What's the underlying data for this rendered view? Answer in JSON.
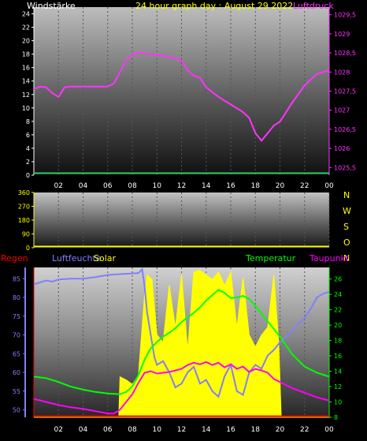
{
  "colors": {
    "background": "#000000",
    "axis_left": "#ffffff",
    "pressure": "#ff33ff",
    "wind": "#33cc66",
    "title": "#ffff00",
    "direction": "#ffff00",
    "rain": "#ff0000",
    "humidity": "#8080ff",
    "solar": "#ffff00",
    "temperature": "#00ff00",
    "dewpoint": "#ff00ff",
    "grid_dash": "#555555"
  },
  "header": {
    "left_label": "Windstärke",
    "title": "24 hour graph day : August 29 2022",
    "right_label": "Luftdruck"
  },
  "direction_letters": [
    "N",
    "W",
    "S",
    "O",
    "N"
  ],
  "legend": {
    "rain": "Regen",
    "humidity": "Luftfeuchte",
    "solar": "Solar",
    "temperature": "Temperatur",
    "dewpoint": "Taupunkt"
  },
  "chart_data": [
    {
      "type": "line",
      "title": "24 hour graph day : August 29 2022",
      "x_ticks": [
        "02",
        "04",
        "06",
        "08",
        "10",
        "12",
        "14",
        "16",
        "18",
        "20",
        "22",
        "00"
      ],
      "xlim": [
        0,
        24
      ],
      "left_axis": {
        "label": "Windstärke",
        "ticks": [
          "0",
          "2",
          "4",
          "6",
          "8",
          "10",
          "12",
          "14",
          "16",
          "18",
          "20",
          "22",
          "24"
        ],
        "ylim": [
          0,
          25
        ]
      },
      "right_axis": {
        "label": "Luftdruck",
        "ticks": [
          "1025,5",
          "1026",
          "1026,5",
          "1027",
          "1027,5",
          "1028",
          "1028,5",
          "1029",
          "1029,5"
        ],
        "ylim": [
          1025.3,
          1029.7
        ]
      },
      "series": [
        {
          "name": "Luftdruck",
          "axis": "right",
          "x": [
            0,
            0.5,
            1,
            1.5,
            2,
            2.5,
            3,
            4,
            5,
            6,
            6.5,
            7,
            7.5,
            8,
            8.5,
            9,
            10,
            11,
            12,
            12.5,
            13,
            13.5,
            14,
            15,
            16,
            17,
            17.5,
            18,
            18.5,
            19,
            19.5,
            20,
            21,
            22,
            23,
            24
          ],
          "y": [
            1027.55,
            1027.62,
            1027.6,
            1027.45,
            1027.35,
            1027.6,
            1027.62,
            1027.62,
            1027.62,
            1027.62,
            1027.7,
            1028.0,
            1028.3,
            1028.45,
            1028.52,
            1028.48,
            1028.45,
            1028.4,
            1028.3,
            1028.05,
            1027.9,
            1027.85,
            1027.6,
            1027.35,
            1027.15,
            1026.95,
            1026.8,
            1026.4,
            1026.2,
            1026.4,
            1026.6,
            1026.7,
            1027.2,
            1027.65,
            1027.95,
            1028.05
          ]
        },
        {
          "name": "Windstärke",
          "axis": "left",
          "x": [
            0,
            24
          ],
          "y": [
            0,
            0
          ]
        }
      ]
    },
    {
      "type": "line",
      "left_axis": {
        "ticks": [
          "0",
          "90",
          "180",
          "270",
          "360"
        ],
        "ylim": [
          0,
          360
        ]
      },
      "series": [
        {
          "name": "Windrichtung",
          "x": [
            0,
            24
          ],
          "y": [
            0,
            0
          ]
        }
      ]
    },
    {
      "type": "line",
      "left_axis": {
        "label": "Luftfeuchte",
        "ticks": [
          "50",
          "55",
          "60",
          "65",
          "70",
          "75",
          "80",
          "85"
        ],
        "ylim": [
          48,
          88
        ]
      },
      "right_axis": {
        "label": "Temperatur",
        "ticks": [
          "8",
          "10",
          "12",
          "14",
          "16",
          "18",
          "20",
          "22",
          "24",
          "26"
        ],
        "ylim": [
          8,
          27.5
        ]
      },
      "series": [
        {
          "name": "Luftfeuchte",
          "axis": "left",
          "x": [
            0,
            0.5,
            1,
            1.5,
            2,
            3,
            4,
            5,
            6,
            7,
            8,
            8.5,
            8.8,
            9,
            9.2,
            9.5,
            9.8,
            10,
            10.5,
            11,
            11.5,
            12,
            12.5,
            13,
            13.5,
            14,
            14.5,
            15,
            15.5,
            16,
            16.5,
            17,
            17.5,
            18,
            18.5,
            19,
            19.5,
            20,
            20.5,
            21,
            21.5,
            22,
            22.5,
            23,
            23.5,
            24
          ],
          "y": [
            83.5,
            84,
            84.5,
            84.2,
            84.8,
            85,
            85,
            85.4,
            86,
            86.2,
            86.4,
            86.5,
            87.5,
            83,
            76,
            70,
            64,
            62,
            63,
            60,
            56,
            57,
            60,
            61.5,
            57,
            58,
            55,
            53.5,
            59,
            62,
            55,
            54,
            60,
            62,
            61,
            64.5,
            66,
            68,
            69.5,
            71,
            73,
            74.5,
            77,
            80,
            81,
            81.5
          ]
        },
        {
          "name": "Temperatur",
          "axis": "right",
          "x": [
            0,
            1,
            2,
            3,
            4,
            5,
            6,
            7,
            7.5,
            8,
            8.5,
            9,
            9.5,
            10,
            10.5,
            11,
            11.5,
            12,
            12.5,
            13,
            13.5,
            14,
            14.5,
            15,
            15.5,
            16,
            16.5,
            17,
            17.5,
            18,
            18.5,
            19,
            19.5,
            20,
            21,
            22,
            23,
            24
          ],
          "y": [
            13.3,
            13.1,
            12.6,
            12.0,
            11.6,
            11.3,
            11.1,
            11.0,
            11.3,
            12.0,
            13.5,
            15.5,
            17.0,
            17.8,
            18.5,
            19.0,
            19.6,
            20.4,
            21.0,
            21.6,
            22.3,
            23.2,
            23.9,
            24.6,
            24.2,
            23.5,
            23.6,
            23.8,
            23.4,
            22.5,
            21.5,
            20.5,
            19.5,
            18.5,
            16.2,
            14.6,
            13.8,
            13.3
          ]
        },
        {
          "name": "Taupunkt",
          "axis": "right",
          "x": [
            0,
            1,
            2,
            3,
            4,
            5,
            6,
            6.5,
            7,
            7.5,
            8,
            8.5,
            9,
            9.5,
            10,
            11,
            12,
            12.5,
            13,
            13.5,
            14,
            14.5,
            15,
            15.5,
            16,
            16.5,
            17,
            17.5,
            18,
            18.5,
            19,
            19.5,
            20,
            21,
            22,
            23,
            24
          ],
          "y": [
            10.4,
            10.0,
            9.6,
            9.3,
            9.1,
            8.8,
            8.5,
            8.5,
            9.0,
            10.0,
            11.0,
            12.5,
            13.8,
            14.0,
            13.7,
            13.9,
            14.3,
            14.8,
            15.1,
            14.9,
            15.2,
            14.8,
            15.1,
            14.5,
            14.9,
            14.3,
            14.6,
            13.9,
            14.3,
            14.1,
            13.8,
            13.0,
            12.6,
            11.8,
            11.2,
            10.6,
            10.2
          ]
        },
        {
          "name": "Solar",
          "type": "area",
          "x": [
            0,
            6.9,
            7.0,
            7.5,
            8.0,
            8.5,
            9.0,
            9.2,
            9.6,
            10.0,
            10.5,
            11.0,
            11.5,
            12.0,
            12.5,
            13.0,
            13.5,
            14.0,
            14.5,
            15.0,
            15.5,
            16.0,
            16.5,
            17.0,
            17.5,
            18.0,
            18.5,
            19.0,
            19.5,
            19.9,
            20.1,
            24
          ],
          "y": [
            0,
            0,
            0.27,
            0.25,
            0.22,
            0.28,
            0.82,
            0.95,
            0.92,
            0.55,
            0.5,
            0.88,
            0.6,
            0.95,
            0.45,
            0.97,
            0.98,
            0.95,
            0.92,
            0.97,
            0.88,
            0.97,
            0.6,
            0.93,
            0.55,
            0.47,
            0.55,
            0.6,
            0.95,
            0.5,
            0,
            0
          ]
        },
        {
          "name": "Regen",
          "axis": "left",
          "x": [
            0,
            24
          ],
          "y": [
            48.3,
            48.3
          ]
        }
      ]
    }
  ]
}
